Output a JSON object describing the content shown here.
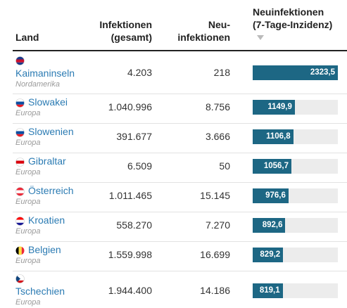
{
  "header": {
    "columns": [
      [
        "Land"
      ],
      [
        "Infektionen",
        "(gesamt)"
      ],
      [
        "Neu-",
        "infektionen"
      ],
      [
        "Neuinfektionen",
        "(7-Tage-Inzidenz)"
      ]
    ]
  },
  "table": {
    "rows": [
      {
        "country": "Kaimaninseln",
        "region": "Nordamerika",
        "total": "4.203",
        "new": "218",
        "incidence": {
          "value": 2323.5,
          "label": "2323,5"
        }
      },
      {
        "country": "Slowakei",
        "region": "Europa",
        "total": "1.040.996",
        "new": "8.756",
        "incidence": {
          "value": 1149.9,
          "label": "1149,9"
        }
      },
      {
        "country": "Slowenien",
        "region": "Europa",
        "total": "391.677",
        "new": "3.666",
        "incidence": {
          "value": 1106.8,
          "label": "1106,8"
        }
      },
      {
        "country": "Gibraltar",
        "region": "Europa",
        "total": "6.509",
        "new": "50",
        "incidence": {
          "value": 1056.7,
          "label": "1056,7"
        }
      },
      {
        "country": "Österreich",
        "region": "Europa",
        "total": "1.011.465",
        "new": "15.145",
        "incidence": {
          "value": 976.6,
          "label": "976,6"
        }
      },
      {
        "country": "Kroatien",
        "region": "Europa",
        "total": "558.270",
        "new": "7.270",
        "incidence": {
          "value": 892.6,
          "label": "892,6"
        }
      },
      {
        "country": "Belgien",
        "region": "Europa",
        "total": "1.559.998",
        "new": "16.699",
        "incidence": {
          "value": 829.2,
          "label": "829,2"
        }
      },
      {
        "country": "Tschechien",
        "region": "Europa",
        "total": "1.944.400",
        "new": "14.186",
        "incidence": {
          "value": 819.1,
          "label": "819,1"
        }
      }
    ]
  }
}
